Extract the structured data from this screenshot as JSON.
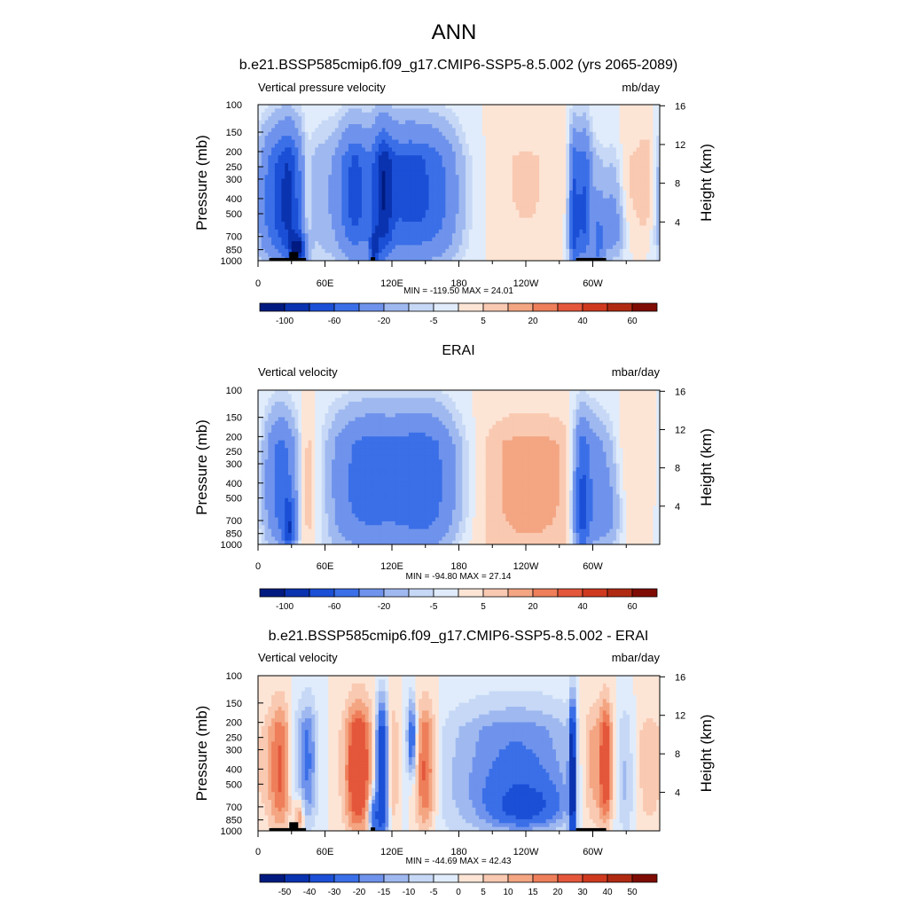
{
  "figure": {
    "title": "ANN"
  },
  "chart_data": [
    {
      "type": "heatmap",
      "title": "b.e21.BSSP585cmip6.f09_g17.CMIP6-SSP5-8.5.002 (yrs 2065-2089)",
      "left_label": "Vertical pressure velocity",
      "right_label": "mb/day",
      "ylabel": "Pressure (mb)",
      "ylabel_right": "Height (km)",
      "x_tick_labels": [
        "0",
        "60E",
        "120E",
        "180",
        "120W",
        "60W"
      ],
      "x_ticks_deg": [
        0,
        60,
        120,
        180,
        240,
        300
      ],
      "xlim": [
        0,
        360
      ],
      "y_tick_labels": [
        "100",
        "150",
        "200",
        "250",
        "300",
        "400",
        "500",
        "700",
        "850",
        "1000"
      ],
      "ylim": [
        1000,
        100
      ],
      "y_right_tick_labels": [
        "4",
        "8",
        "12",
        "16"
      ],
      "stats": "MIN = -119.50  MAX =  24.01",
      "min": -119.5,
      "max": 24.01,
      "colorbar": {
        "colors": [
          "#001a80",
          "#0a33b0",
          "#1a4fd6",
          "#3a6fe8",
          "#6f93ec",
          "#9fb9f0",
          "#c6d8f6",
          "#e0ecfb",
          "#fde5d6",
          "#f9c9b1",
          "#f4a582",
          "#ee7f5a",
          "#e4573b",
          "#cf3a1f",
          "#b02a12",
          "#7f0c04"
        ],
        "levels": [
          -120,
          -100,
          -80,
          -60,
          -40,
          -20,
          -10,
          -5,
          0,
          5,
          10,
          20,
          30,
          40,
          50,
          60,
          80
        ],
        "label_indices": [
          1,
          3,
          5,
          7,
          9,
          11,
          13,
          15
        ],
        "labels": [
          "-100",
          "-60",
          "-20",
          "-5",
          "5",
          "20",
          "40",
          "60"
        ]
      },
      "land_blocks": [
        {
          "lon": [
            10,
            43
          ],
          "p_top": 960
        },
        {
          "lon": [
            28,
            36
          ],
          "p_top": 880
        },
        {
          "lon": [
            101,
            105
          ],
          "p_top": 950
        },
        {
          "lon": [
            285,
            312
          ],
          "p_top": 960
        }
      ],
      "features": [
        {
          "lon": 12,
          "w": 10,
          "p": 430,
          "hp": 750,
          "amp": -45
        },
        {
          "lon": 28,
          "w": 8,
          "p": 420,
          "hp": 850,
          "amp": -70
        },
        {
          "lon": 36,
          "w": 5,
          "p": 850,
          "hp": 250,
          "amp": -90
        },
        {
          "lon": 44,
          "w": 3,
          "p": 400,
          "hp": 500,
          "amp": 12
        },
        {
          "lon": 97,
          "w": 35,
          "p": 380,
          "hp": 900,
          "amp": -30
        },
        {
          "lon": 86,
          "w": 8,
          "p": 400,
          "hp": 700,
          "amp": -40
        },
        {
          "lon": 112,
          "w": 6,
          "p": 380,
          "hp": 900,
          "amp": -55
        },
        {
          "lon": 104,
          "w": 3,
          "p": 850,
          "hp": 300,
          "amp": -60
        },
        {
          "lon": 135,
          "w": 18,
          "p": 360,
          "hp": 800,
          "amp": -45
        },
        {
          "lon": 162,
          "w": 15,
          "p": 400,
          "hp": 800,
          "amp": -30
        },
        {
          "lon": 240,
          "w": 20,
          "p": 300,
          "hp": 800,
          "amp": 6
        },
        {
          "lon": 283,
          "w": 3,
          "p": 600,
          "hp": 900,
          "amp": -60
        },
        {
          "lon": 292,
          "w": 5,
          "p": 500,
          "hp": 800,
          "amp": -65
        },
        {
          "lon": 305,
          "w": 4,
          "p": 800,
          "hp": 600,
          "amp": -40
        },
        {
          "lon": 318,
          "w": 8,
          "p": 600,
          "hp": 500,
          "amp": -30
        },
        {
          "lon": 330,
          "w": 6,
          "p": 400,
          "hp": 600,
          "amp": 8
        },
        {
          "lon": 350,
          "w": 8,
          "p": 300,
          "hp": 600,
          "amp": 12
        }
      ]
    },
    {
      "type": "heatmap",
      "title": "ERAI",
      "left_label": "Vertical velocity",
      "right_label": "mbar/day",
      "ylabel": "Pressure (mb)",
      "ylabel_right": "Height (km)",
      "x_tick_labels": [
        "0",
        "60E",
        "120E",
        "180",
        "120W",
        "60W"
      ],
      "x_ticks_deg": [
        0,
        60,
        120,
        180,
        240,
        300
      ],
      "xlim": [
        0,
        360
      ],
      "y_tick_labels": [
        "100",
        "150",
        "200",
        "250",
        "300",
        "400",
        "500",
        "700",
        "850",
        "1000"
      ],
      "ylim": [
        1000,
        100
      ],
      "y_right_tick_labels": [
        "4",
        "8",
        "12",
        "16"
      ],
      "stats": "MIN = -94.80  MAX =  27.14",
      "min": -94.8,
      "max": 27.14,
      "colorbar": {
        "colors": [
          "#001a80",
          "#0a33b0",
          "#1a4fd6",
          "#3a6fe8",
          "#6f93ec",
          "#9fb9f0",
          "#c6d8f6",
          "#e0ecfb",
          "#fde5d6",
          "#f9c9b1",
          "#f4a582",
          "#ee7f5a",
          "#e4573b",
          "#cf3a1f",
          "#b02a12",
          "#7f0c04"
        ],
        "levels": [
          -120,
          -100,
          -80,
          -60,
          -40,
          -20,
          -10,
          -5,
          0,
          5,
          10,
          20,
          30,
          40,
          50,
          60,
          80
        ],
        "label_indices": [
          1,
          3,
          5,
          7,
          9,
          11,
          13,
          15
        ],
        "labels": [
          "-100",
          "-60",
          "-20",
          "-5",
          "5",
          "20",
          "40",
          "60"
        ]
      },
      "land_blocks": [],
      "features": [
        {
          "lon": 20,
          "w": 10,
          "p": 430,
          "hp": 800,
          "amp": -50
        },
        {
          "lon": 28,
          "w": 4,
          "p": 800,
          "hp": 400,
          "amp": -60
        },
        {
          "lon": 45,
          "w": 6,
          "p": 450,
          "hp": 900,
          "amp": 14
        },
        {
          "lon": 60,
          "w": 6,
          "p": 450,
          "hp": 500,
          "amp": 6
        },
        {
          "lon": 95,
          "w": 22,
          "p": 420,
          "hp": 900,
          "amp": -35
        },
        {
          "lon": 150,
          "w": 20,
          "p": 420,
          "hp": 900,
          "amp": -40
        },
        {
          "lon": 125,
          "w": 40,
          "p": 400,
          "hp": 900,
          "amp": -20
        },
        {
          "lon": 240,
          "w": 45,
          "p": 400,
          "hp": 1300,
          "amp": 13
        },
        {
          "lon": 290,
          "w": 5,
          "p": 600,
          "hp": 900,
          "amp": -55
        },
        {
          "lon": 300,
          "w": 10,
          "p": 500,
          "hp": 800,
          "amp": -35
        },
        {
          "lon": 315,
          "w": 8,
          "p": 600,
          "hp": 600,
          "amp": -20
        },
        {
          "lon": 340,
          "w": 20,
          "p": 300,
          "hp": 600,
          "amp": 4
        }
      ]
    },
    {
      "type": "heatmap",
      "title": "b.e21.BSSP585cmip6.f09_g17.CMIP6-SSP5-8.5.002 - ERAI",
      "left_label": "Vertical velocity",
      "right_label": "mbar/day",
      "ylabel": "Pressure (mb)",
      "ylabel_right": "Height (km)",
      "x_tick_labels": [
        "0",
        "60E",
        "120E",
        "180",
        "120W",
        "60W"
      ],
      "x_ticks_deg": [
        0,
        60,
        120,
        180,
        240,
        300
      ],
      "xlim": [
        0,
        360
      ],
      "y_tick_labels": [
        "100",
        "150",
        "200",
        "250",
        "300",
        "400",
        "500",
        "700",
        "850",
        "1000"
      ],
      "ylim": [
        1000,
        100
      ],
      "y_right_tick_labels": [
        "4",
        "8",
        "12",
        "16"
      ],
      "stats": "MIN = -44.69  MAX =  42.43",
      "min": -44.69,
      "max": 42.43,
      "colorbar": {
        "colors": [
          "#001a80",
          "#0a33b0",
          "#1a4fd6",
          "#3a6fe8",
          "#6f93ec",
          "#9fb9f0",
          "#c6d8f6",
          "#e0ecfb",
          "#fde5d6",
          "#f9c9b1",
          "#f4a582",
          "#ee7f5a",
          "#e4573b",
          "#cf3a1f",
          "#b02a12",
          "#7f0c04"
        ],
        "levels": [
          -60,
          -50,
          -40,
          -30,
          -20,
          -15,
          -10,
          -5,
          0,
          5,
          10,
          15,
          20,
          30,
          40,
          50,
          60
        ],
        "label_indices": [
          1,
          2,
          3,
          4,
          5,
          6,
          7,
          8,
          9,
          10,
          11,
          12,
          13,
          14,
          15
        ],
        "labels": [
          "-50",
          "-40",
          "-30",
          "-20",
          "-15",
          "-10",
          "-5",
          "0",
          "5",
          "10",
          "15",
          "20",
          "30",
          "40",
          "50"
        ]
      },
      "land_blocks": [
        {
          "lon": [
            10,
            43
          ],
          "p_top": 960
        },
        {
          "lon": [
            28,
            36
          ],
          "p_top": 880
        },
        {
          "lon": [
            101,
            105
          ],
          "p_top": 950
        },
        {
          "lon": [
            285,
            312
          ],
          "p_top": 960
        }
      ],
      "features": [
        {
          "lon": 20,
          "w": 8,
          "p": 420,
          "hp": 800,
          "amp": 22
        },
        {
          "lon": 33,
          "w": 6,
          "p": 400,
          "hp": 600,
          "amp": -10
        },
        {
          "lon": 37,
          "w": 3,
          "p": 800,
          "hp": 300,
          "amp": 18
        },
        {
          "lon": 45,
          "w": 6,
          "p": 350,
          "hp": 800,
          "amp": -20
        },
        {
          "lon": 90,
          "w": 9,
          "p": 420,
          "hp": 850,
          "amp": 30
        },
        {
          "lon": 111,
          "w": 4,
          "p": 480,
          "hp": 1300,
          "amp": -40
        },
        {
          "lon": 103,
          "w": 3,
          "p": 800,
          "hp": 300,
          "amp": -30
        },
        {
          "lon": 121,
          "w": 4,
          "p": 400,
          "hp": 800,
          "amp": 12
        },
        {
          "lon": 138,
          "w": 3,
          "p": 230,
          "hp": 300,
          "amp": -30
        },
        {
          "lon": 150,
          "w": 7,
          "p": 420,
          "hp": 800,
          "amp": 25
        },
        {
          "lon": 230,
          "w": 45,
          "p": 480,
          "hp": 900,
          "amp": -22
        },
        {
          "lon": 240,
          "w": 20,
          "p": 700,
          "hp": 300,
          "amp": -20
        },
        {
          "lon": 282,
          "w": 2,
          "p": 500,
          "hp": 1300,
          "amp": -45
        },
        {
          "lon": 300,
          "w": 9,
          "p": 420,
          "hp": 800,
          "amp": 18
        },
        {
          "lon": 312,
          "w": 4,
          "p": 400,
          "hp": 700,
          "amp": 25
        },
        {
          "lon": 330,
          "w": 5,
          "p": 500,
          "hp": 800,
          "amp": -10
        },
        {
          "lon": 350,
          "w": 10,
          "p": 400,
          "hp": 900,
          "amp": 8
        }
      ]
    }
  ]
}
